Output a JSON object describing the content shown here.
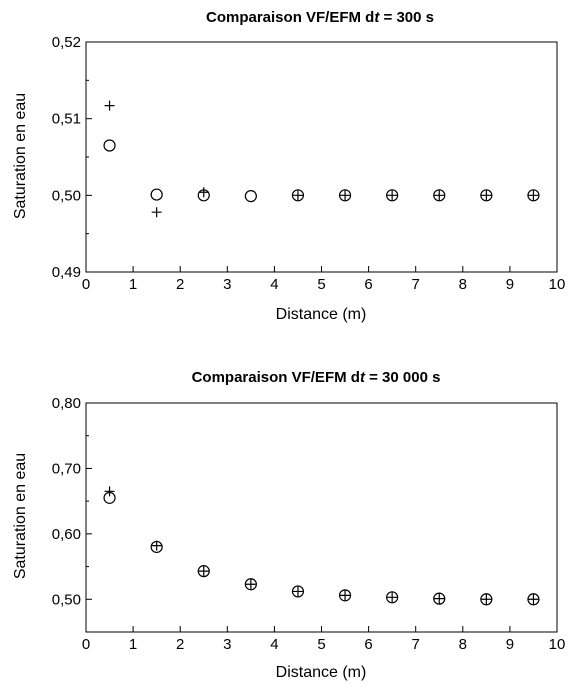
{
  "chart_data": [
    {
      "type": "scatter",
      "title": {
        "pre": "Comparaison VF/EFM d",
        "italic": "t",
        "post": " = 300 s"
      },
      "xlabel": "Distance (m)",
      "ylabel": "Saturation en eau",
      "xlim": [
        0,
        10
      ],
      "ylim": [
        0.49,
        0.52
      ],
      "xticks": [
        0,
        1,
        2,
        3,
        4,
        5,
        6,
        7,
        8,
        9,
        10
      ],
      "xtick_labels": [
        "0",
        "1",
        "2",
        "3",
        "4",
        "5",
        "6",
        "7",
        "8",
        "9",
        "10"
      ],
      "yticks": [
        0.49,
        0.5,
        0.51,
        0.52
      ],
      "ytick_labels": [
        "0,49",
        "0,50",
        "0,51",
        "0,52"
      ],
      "yminor": [
        0.495,
        0.505,
        0.515
      ],
      "grid": false,
      "series": [
        {
          "marker": "circle",
          "x": [
            0.5,
            1.5,
            2.5,
            3.5,
            4.5,
            5.5,
            6.5,
            7.5,
            8.5,
            9.5
          ],
          "y": [
            0.5065,
            0.5001,
            0.5,
            0.4999,
            0.5,
            0.5,
            0.5,
            0.5,
            0.5,
            0.5
          ]
        },
        {
          "marker": "plus",
          "x": [
            0.5,
            1.5,
            2.5,
            4.5,
            5.5,
            6.5,
            7.5,
            8.5,
            9.5
          ],
          "y": [
            0.5117,
            0.4978,
            0.5004,
            0.5,
            0.5,
            0.5,
            0.5,
            0.5,
            0.5
          ]
        }
      ]
    },
    {
      "type": "scatter",
      "title": {
        "pre": "Comparaison VF/EFM d",
        "italic": "t",
        "post": " = 30 000 s"
      },
      "xlabel": "Distance (m)",
      "ylabel": "Saturation en eau",
      "xlim": [
        0,
        10
      ],
      "ylim": [
        0.45,
        0.8
      ],
      "xticks": [
        0,
        1,
        2,
        3,
        4,
        5,
        6,
        7,
        8,
        9,
        10
      ],
      "xtick_labels": [
        "0",
        "1",
        "2",
        "3",
        "4",
        "5",
        "6",
        "7",
        "8",
        "9",
        "10"
      ],
      "yticks": [
        0.5,
        0.6,
        0.7,
        0.8
      ],
      "ytick_labels": [
        "0,50",
        "0,60",
        "0,70",
        "0,80"
      ],
      "yminor": [
        0.45,
        0.55,
        0.65,
        0.75
      ],
      "grid": false,
      "series": [
        {
          "marker": "circle",
          "x": [
            0.5,
            1.5,
            2.5,
            3.5,
            4.5,
            5.5,
            6.5,
            7.5,
            8.5,
            9.5
          ],
          "y": [
            0.655,
            0.58,
            0.543,
            0.523,
            0.512,
            0.506,
            0.503,
            0.501,
            0.5,
            0.5
          ]
        },
        {
          "marker": "plus",
          "x": [
            0.5,
            1.5,
            2.5,
            3.5,
            4.5,
            5.5,
            6.5,
            7.5,
            8.5,
            9.5
          ],
          "y": [
            0.665,
            0.582,
            0.543,
            0.523,
            0.512,
            0.506,
            0.503,
            0.501,
            0.5,
            0.5
          ]
        }
      ]
    }
  ]
}
